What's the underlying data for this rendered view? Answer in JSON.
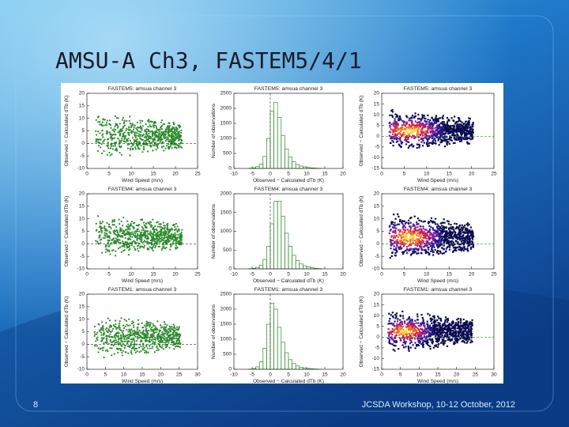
{
  "slide": {
    "title": "AMSU-A Ch3, FASTEM5/4/1",
    "page_number": "8",
    "footer": "JCSDA Workshop, 10-12 October, 2012"
  },
  "rows": [
    {
      "scatter": {
        "title": "FASTEM5: amsua channel 3",
        "xlabel": "Wind Speed (m/s)",
        "ylabel": "Observed − Calculated dTb (K)",
        "xlim": [
          0,
          25
        ],
        "xticks": [
          0,
          5,
          10,
          15,
          20,
          25
        ],
        "ylim": [
          -10,
          20
        ],
        "yticks": [
          -10,
          -5,
          0,
          5,
          10,
          15,
          20
        ]
      },
      "histogram": {
        "title": "FASTEM5: amsua channel 3",
        "xlabel": "Observed − Calculated dTb (K)",
        "ylabel": "Number of observations",
        "xlim": [
          -10,
          20
        ],
        "xticks": [
          -10,
          -5,
          0,
          5,
          10,
          15,
          20
        ],
        "ylim": [
          0,
          2500
        ],
        "yticks": [
          0,
          500,
          1000,
          1500,
          2000,
          2500
        ],
        "bins": [
          -6,
          -5,
          -4,
          -3,
          -2,
          -1,
          0,
          1,
          2,
          3,
          4,
          5,
          6,
          7,
          8,
          9,
          10,
          11,
          12,
          13,
          14
        ],
        "counts": [
          5,
          20,
          60,
          150,
          400,
          1000,
          1900,
          2200,
          1700,
          1100,
          650,
          380,
          220,
          130,
          80,
          50,
          30,
          18,
          10,
          5
        ]
      },
      "density": {
        "title": "FASTEM5: amsua channel 3",
        "xlabel": "Wind Speed (m/s)",
        "ylabel": "Observed − Calculated dTb (K)",
        "xlim": [
          0,
          25
        ],
        "xticks": [
          0,
          5,
          10,
          15,
          20,
          25
        ],
        "ylim": [
          -15,
          20
        ],
        "yticks": [
          -15,
          -10,
          -5,
          0,
          5,
          10,
          15,
          20
        ]
      }
    },
    {
      "scatter": {
        "title": "FASTEM4: amsua channel 3",
        "xlabel": "Wind Speed (m/s)",
        "ylabel": "Observed − Calculated dTb (K)",
        "xlim": [
          0,
          25
        ],
        "xticks": [
          0,
          5,
          10,
          15,
          20,
          25
        ],
        "ylim": [
          -10,
          20
        ],
        "yticks": [
          -10,
          -5,
          0,
          5,
          10,
          15,
          20
        ]
      },
      "histogram": {
        "title": "FASTEM4: amsua channel 3",
        "xlabel": "Observed − Calculated dTb (K)",
        "ylabel": "Number of observations",
        "xlim": [
          -10,
          20
        ],
        "xticks": [
          -10,
          -5,
          0,
          5,
          10,
          15,
          20
        ],
        "ylim": [
          0,
          2000
        ],
        "yticks": [
          0,
          500,
          1000,
          1500,
          2000
        ],
        "bins": [
          -6,
          -5,
          -4,
          -3,
          -2,
          -1,
          0,
          1,
          2,
          3,
          4,
          5,
          6,
          7,
          8,
          9,
          10,
          11,
          12,
          13,
          14
        ],
        "counts": [
          5,
          15,
          40,
          100,
          250,
          600,
          1200,
          1800,
          1800,
          1400,
          950,
          600,
          360,
          220,
          130,
          80,
          50,
          30,
          15,
          8
        ]
      },
      "density": {
        "title": "FASTEM4: amsua channel 3",
        "xlabel": "Wind Speed (m/s)",
        "ylabel": "Observed − Calculated dTb (K)",
        "xlim": [
          0,
          25
        ],
        "xticks": [
          0,
          5,
          10,
          15,
          20,
          25
        ],
        "ylim": [
          -10,
          20
        ],
        "yticks": [
          -10,
          -5,
          0,
          5,
          10,
          15,
          20
        ]
      }
    },
    {
      "scatter": {
        "title": "FASTEM1: amsua channel 3",
        "xlabel": "Wind Speed (m/s)",
        "ylabel": "Observed − Calculated dTb (K)",
        "xlim": [
          0,
          30
        ],
        "xticks": [
          0,
          5,
          10,
          15,
          20,
          25,
          30
        ],
        "ylim": [
          -10,
          20
        ],
        "yticks": [
          -10,
          -5,
          0,
          5,
          10,
          15,
          20
        ]
      },
      "histogram": {
        "title": "FASTEM1: amsua channel 3",
        "xlabel": "Observed − Calculated dTb (K)",
        "ylabel": "Number of observations",
        "xlim": [
          -10,
          20
        ],
        "xticks": [
          -10,
          -5,
          0,
          5,
          10,
          15,
          20
        ],
        "ylim": [
          0,
          2500
        ],
        "yticks": [
          0,
          500,
          1000,
          1500,
          2000,
          2500
        ],
        "bins": [
          -6,
          -5,
          -4,
          -3,
          -2,
          -1,
          0,
          1,
          2,
          3,
          4,
          5,
          6,
          7,
          8,
          9,
          10,
          11,
          12,
          13,
          14
        ],
        "counts": [
          5,
          25,
          80,
          250,
          700,
          1500,
          2200,
          2000,
          1400,
          900,
          550,
          320,
          190,
          110,
          70,
          45,
          28,
          16,
          9,
          4
        ]
      },
      "density": {
        "title": "FASTEM1: amsua channel 3",
        "xlabel": "Wind Speed (m/s)",
        "ylabel": "Observed − Calculated dTb (K)",
        "xlim": [
          0,
          30
        ],
        "xticks": [
          0,
          5,
          10,
          15,
          20,
          25,
          30
        ],
        "ylim": [
          -15,
          20
        ],
        "yticks": [
          -15,
          -10,
          -5,
          0,
          5,
          10,
          15,
          20
        ]
      }
    }
  ]
}
